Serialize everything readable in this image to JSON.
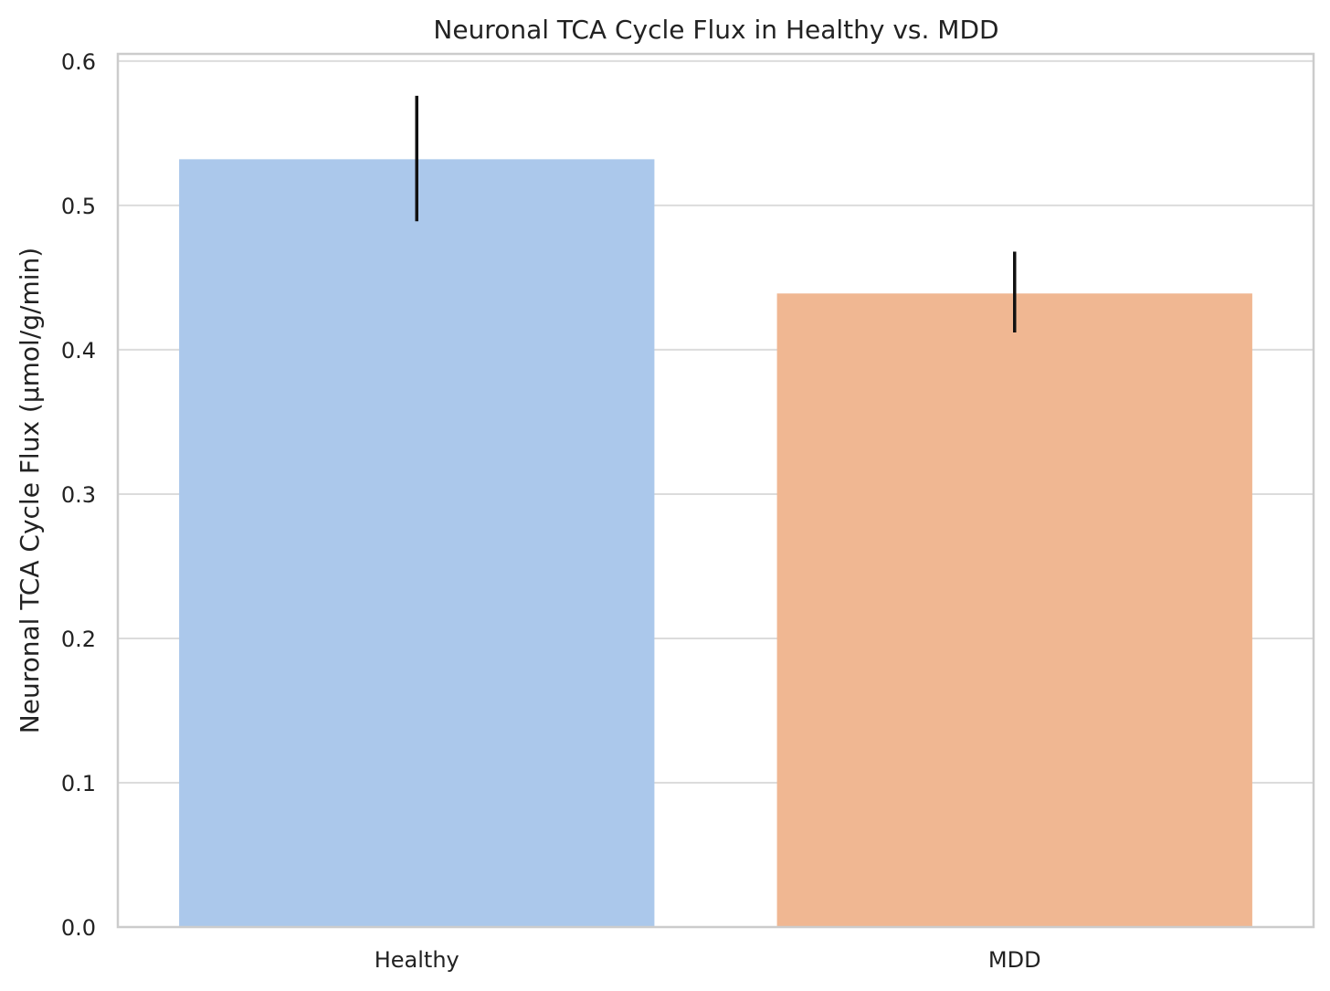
{
  "chart_data": {
    "type": "bar",
    "title": "Neuronal TCA Cycle Flux in Healthy vs. MDD",
    "xlabel": "",
    "ylabel": "Neuronal TCA Cycle Flux (μmol/g/min)",
    "categories": [
      "Healthy",
      "MDD"
    ],
    "values": [
      0.532,
      0.439
    ],
    "error_low": [
      0.489,
      0.412
    ],
    "error_high": [
      0.576,
      0.468
    ],
    "ylim": [
      0.0,
      0.605
    ],
    "yticks": [
      "0.0",
      "0.1",
      "0.2",
      "0.3",
      "0.4",
      "0.5",
      "0.6"
    ],
    "ytick_values": [
      0,
      0.1,
      0.2,
      0.3,
      0.4,
      0.5,
      0.6
    ],
    "grid": "y",
    "legend": "none",
    "colors": [
      "#abc8eb",
      "#f0b792"
    ],
    "error_color": "#111111"
  }
}
